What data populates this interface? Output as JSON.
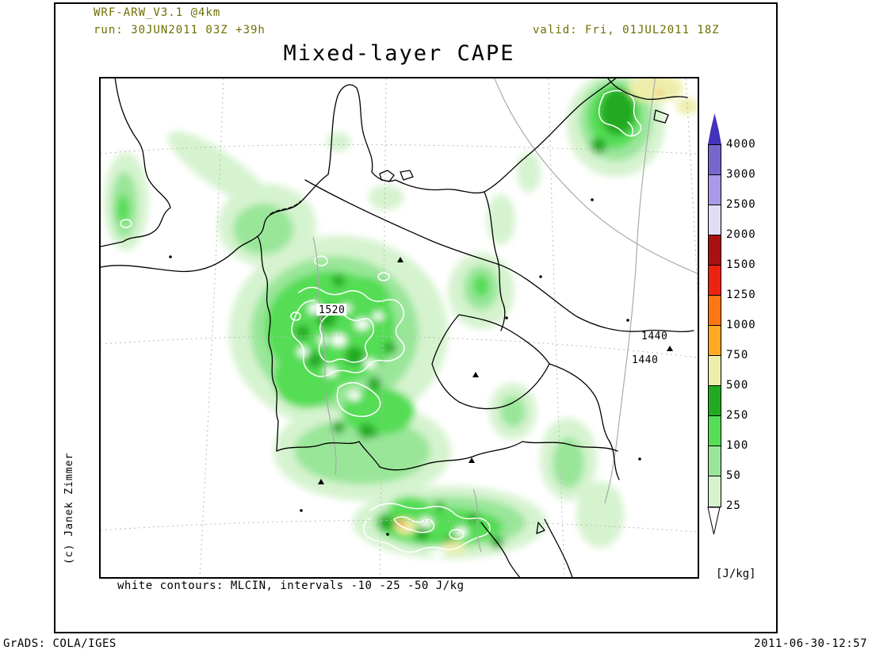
{
  "header": {
    "model": "WRF-ARW_V3.1 @4km",
    "run": "run: 30JUN2011 03Z +39h",
    "valid": "valid: Fri, 01JUL2011 18Z"
  },
  "title": "Mixed-layer CAPE",
  "map": {
    "caption": "white contours: MLCIN, intervals -10 -25 -50 J/kg",
    "labels": [
      {
        "text": "1520"
      },
      {
        "text": "1440"
      },
      {
        "text": "1440"
      }
    ]
  },
  "credit": "(c) Janek Zimmer",
  "footer": {
    "left": "GrADS: COLA/IGES",
    "right": "2011-06-30-12:57"
  },
  "colorbar": {
    "units": "[J/kg]",
    "levels": [
      "4000",
      "3000",
      "2500",
      "2000",
      "1500",
      "1250",
      "1000",
      "750",
      "500",
      "250",
      "100",
      "50",
      "25"
    ],
    "colors": [
      "#7766cc",
      "#aa99e6",
      "#e0def5",
      "#aa1010",
      "#ee2211",
      "#ff7711",
      "#ffaa22",
      "#eeeeaa",
      "#22aa22",
      "#55dd55",
      "#99e699",
      "#d5f3cf"
    ],
    "over_color": "#4433bb",
    "under_color": "#ffffff"
  },
  "palette": {
    "pale_green": "#d5f3cf",
    "light_green": "#99e699",
    "mid_green": "#55dd55",
    "dark_green": "#22aa22",
    "tan": "#eeeeaa",
    "orange": "#ffaa22",
    "red_orange": "#ff7711",
    "header_text": "#6e6e00"
  }
}
